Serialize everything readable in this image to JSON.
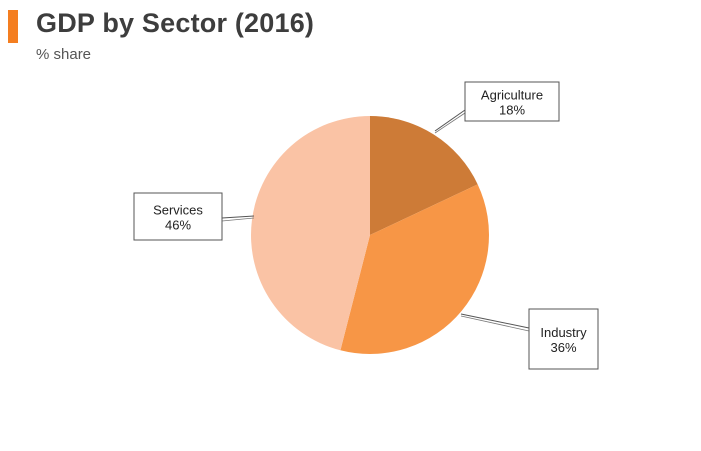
{
  "header": {
    "title": "GDP by Sector (2016)",
    "subtitle": "% share"
  },
  "colors": {
    "accent": "#f47e20"
  },
  "chart_data": {
    "type": "pie",
    "title": "GDP by Sector (2016)",
    "subtitle": "% share",
    "start_angle_deg": 0,
    "direction": "clockwise",
    "slices": [
      {
        "name": "Agriculture",
        "value": 18,
        "label": "18%",
        "color": "#cd7b37"
      },
      {
        "name": "Industry",
        "value": 36,
        "label": "36%",
        "color": "#f79646"
      },
      {
        "name": "Services",
        "value": 46,
        "label": "46%",
        "color": "#fac3a5"
      }
    ]
  }
}
